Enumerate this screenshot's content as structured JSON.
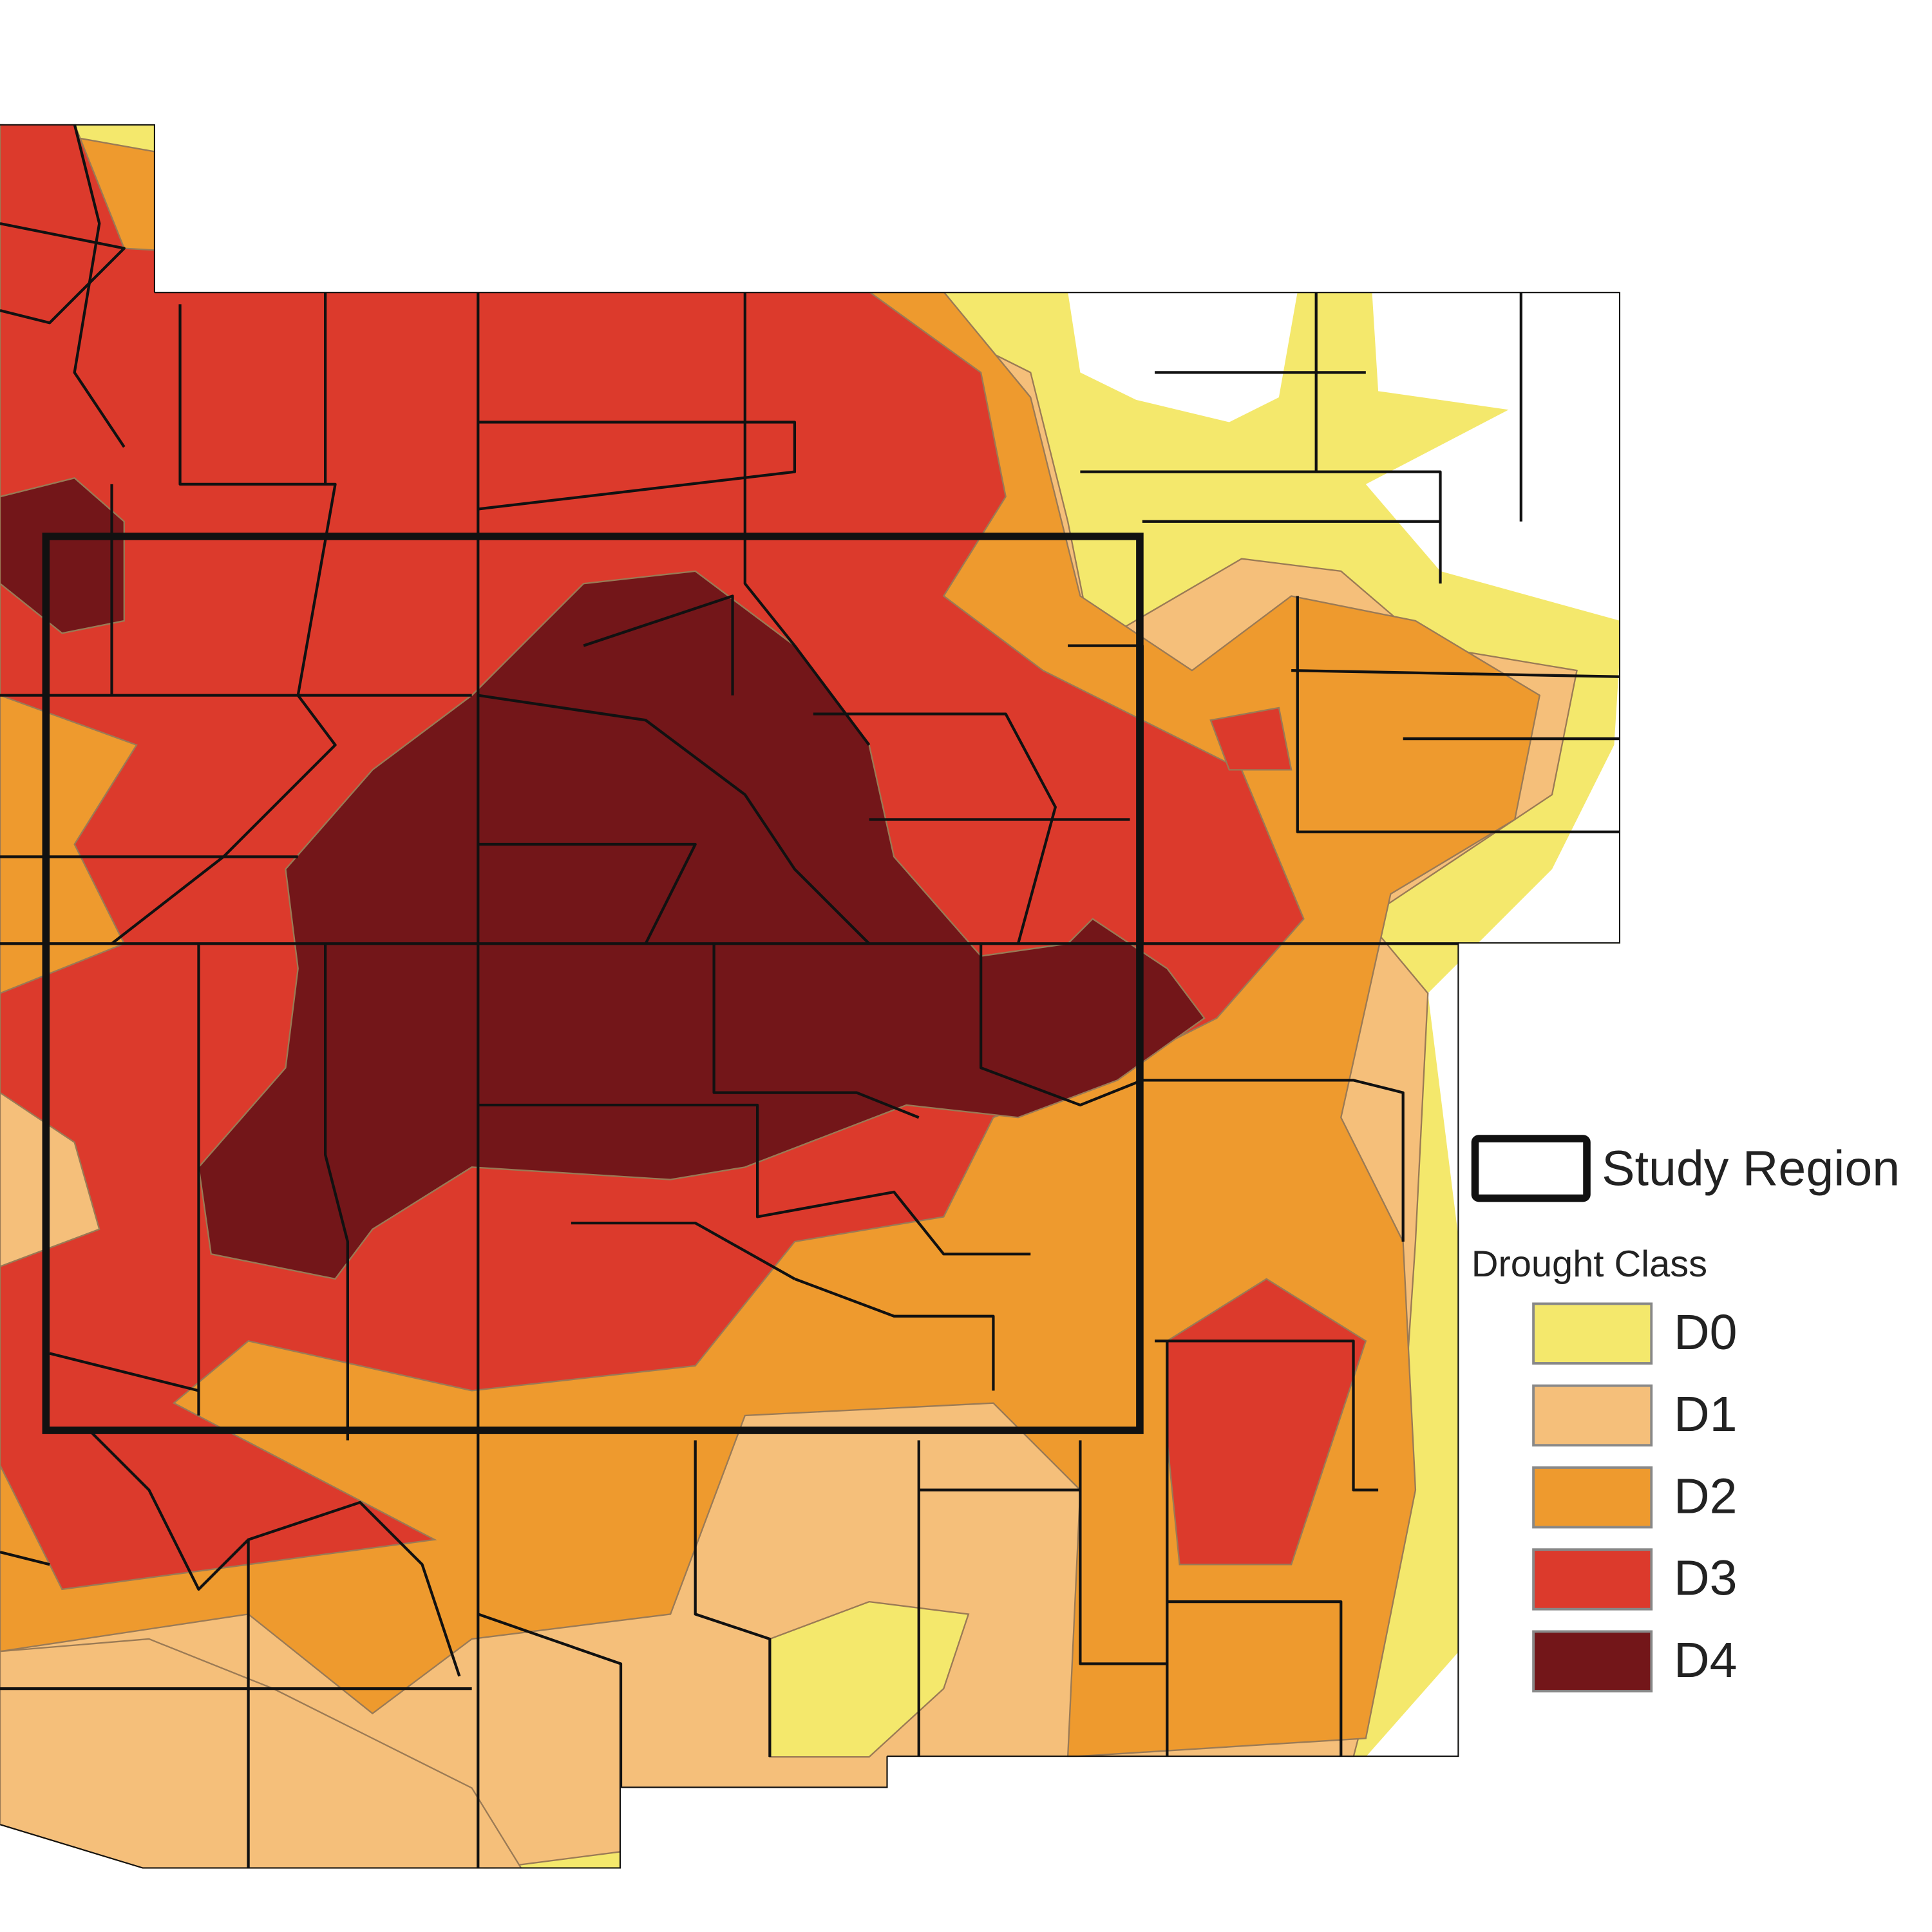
{
  "legend": {
    "study_region": "Study Region",
    "title": "Drought Class",
    "items": [
      {
        "label": "D0",
        "color": "#f4e86c"
      },
      {
        "label": "D1",
        "color": "#f5bf7a"
      },
      {
        "label": "D2",
        "color": "#ee9a2e"
      },
      {
        "label": "D3",
        "color": "#dc3a2c"
      },
      {
        "label": "D4",
        "color": "#731619"
      }
    ]
  }
}
